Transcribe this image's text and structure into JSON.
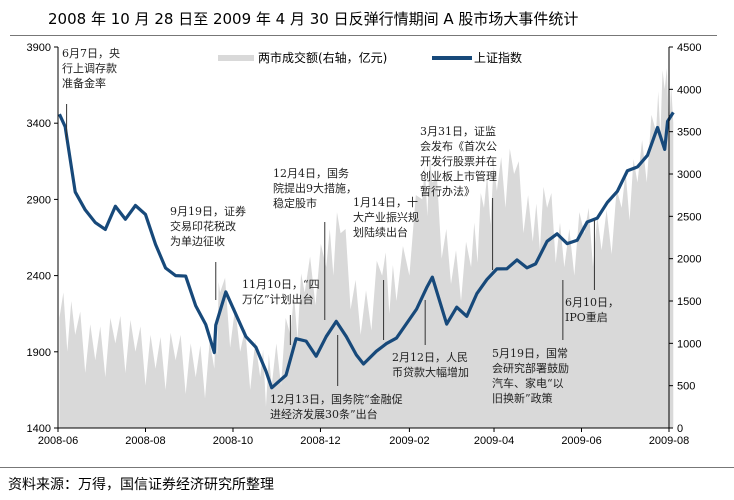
{
  "title": "2008 年 10 月 28 日至 2009 年 4 月 30 日反弹行情期间 A 股市场大事件统计",
  "source": "资料来源：万得，国信证券经济研究所整理",
  "chart_data": {
    "type": "line+area",
    "title": "2008 年 10 月 28 日至 2009 年 4 月 30 日反弹行情期间 A 股市场大事件统计",
    "xlim": [
      "2008-06-01",
      "2009-08-05"
    ],
    "x_ticks": [
      "2008-06",
      "2008-08",
      "2008-10",
      "2008-12",
      "2009-02",
      "2009-04",
      "2009-06",
      "2009-08"
    ],
    "y_left": {
      "range": [
        1400,
        3900
      ],
      "ticks": [
        1400,
        1900,
        2400,
        2900,
        3400,
        3900
      ]
    },
    "y_right": {
      "range": [
        0,
        4500
      ],
      "ticks": [
        0,
        500,
        1000,
        1500,
        2000,
        2500,
        3000,
        3500,
        4000,
        4500
      ]
    },
    "legend_position": "top",
    "grid": false,
    "colors": {
      "index": "#17497A",
      "volume": "#D9D9D9"
    },
    "series": [
      {
        "name": "上证指数",
        "axis": "left",
        "type": "line",
        "points": [
          [
            "2008-06-02",
            3459
          ],
          [
            "2008-06-06",
            3377
          ],
          [
            "2008-06-13",
            2949
          ],
          [
            "2008-06-20",
            2831
          ],
          [
            "2008-06-27",
            2748
          ],
          [
            "2008-07-04",
            2703
          ],
          [
            "2008-07-11",
            2855
          ],
          [
            "2008-07-18",
            2770
          ],
          [
            "2008-07-25",
            2860
          ],
          [
            "2008-08-01",
            2801
          ],
          [
            "2008-08-08",
            2605
          ],
          [
            "2008-08-15",
            2450
          ],
          [
            "2008-08-22",
            2400
          ],
          [
            "2008-08-29",
            2397
          ],
          [
            "2008-09-05",
            2202
          ],
          [
            "2008-09-12",
            2079
          ],
          [
            "2008-09-18",
            1895
          ],
          [
            "2008-09-19",
            2075
          ],
          [
            "2008-09-26",
            2293
          ],
          [
            "2008-10-10",
            2000
          ],
          [
            "2008-10-17",
            1930
          ],
          [
            "2008-10-24",
            1773
          ],
          [
            "2008-10-28",
            1664
          ],
          [
            "2008-11-07",
            1747
          ],
          [
            "2008-11-14",
            1986
          ],
          [
            "2008-11-21",
            1970
          ],
          [
            "2008-11-28",
            1871
          ],
          [
            "2008-12-05",
            2000
          ],
          [
            "2008-12-12",
            2100
          ],
          [
            "2008-12-19",
            2000
          ],
          [
            "2008-12-26",
            1880
          ],
          [
            "2008-12-31",
            1820
          ],
          [
            "2009-01-09",
            1904
          ],
          [
            "2009-01-16",
            1954
          ],
          [
            "2009-01-23",
            1990
          ],
          [
            "2009-02-06",
            2180
          ],
          [
            "2009-02-13",
            2320
          ],
          [
            "2009-02-17",
            2390
          ],
          [
            "2009-02-27",
            2082
          ],
          [
            "2009-03-06",
            2193
          ],
          [
            "2009-03-13",
            2133
          ],
          [
            "2009-03-20",
            2281
          ],
          [
            "2009-03-27",
            2374
          ],
          [
            "2009-04-03",
            2444
          ],
          [
            "2009-04-10",
            2445
          ],
          [
            "2009-04-17",
            2503
          ],
          [
            "2009-04-24",
            2451
          ],
          [
            "2009-04-30",
            2477
          ],
          [
            "2009-05-08",
            2625
          ],
          [
            "2009-05-15",
            2674
          ],
          [
            "2009-05-22",
            2610
          ],
          [
            "2009-05-29",
            2632
          ],
          [
            "2009-06-05",
            2752
          ],
          [
            "2009-06-12",
            2777
          ],
          [
            "2009-06-19",
            2880
          ],
          [
            "2009-06-26",
            2953
          ],
          [
            "2009-07-03",
            3088
          ],
          [
            "2009-07-10",
            3113
          ],
          [
            "2009-07-17",
            3189
          ],
          [
            "2009-07-24",
            3372
          ],
          [
            "2009-07-29",
            3228
          ],
          [
            "2009-07-31",
            3412
          ],
          [
            "2009-08-04",
            3471
          ]
        ]
      },
      {
        "name": "两市成交额(右轴，亿元)",
        "axis": "right",
        "type": "area",
        "points": [
          [
            "2008-06-02",
            1300
          ],
          [
            "2008-06-13",
            1100
          ],
          [
            "2008-06-27",
            800
          ],
          [
            "2008-07-11",
            1000
          ],
          [
            "2008-07-25",
            900
          ],
          [
            "2008-08-08",
            700
          ],
          [
            "2008-08-22",
            800
          ],
          [
            "2008-09-05",
            600
          ],
          [
            "2008-09-18",
            700
          ],
          [
            "2008-09-22",
            1600
          ],
          [
            "2008-10-06",
            900
          ],
          [
            "2008-10-20",
            600
          ],
          [
            "2008-10-28",
            500
          ],
          [
            "2008-11-10",
            1100
          ],
          [
            "2008-11-20",
            1600
          ],
          [
            "2008-12-05",
            1900
          ],
          [
            "2008-12-15",
            2300
          ],
          [
            "2008-12-29",
            1100
          ],
          [
            "2009-01-13",
            1800
          ],
          [
            "2009-01-23",
            1500
          ],
          [
            "2009-02-10",
            2700
          ],
          [
            "2009-02-17",
            2900
          ],
          [
            "2009-03-02",
            1700
          ],
          [
            "2009-03-16",
            1900
          ],
          [
            "2009-03-25",
            2600
          ],
          [
            "2009-04-03",
            2800
          ],
          [
            "2009-04-15",
            3000
          ],
          [
            "2009-04-28",
            2200
          ],
          [
            "2009-05-08",
            2600
          ],
          [
            "2009-05-20",
            1900
          ],
          [
            "2009-06-03",
            2300
          ],
          [
            "2009-06-15",
            2100
          ],
          [
            "2009-06-29",
            2600
          ],
          [
            "2009-07-10",
            2900
          ],
          [
            "2009-07-23",
            3500
          ],
          [
            "2009-07-29",
            4000
          ],
          [
            "2009-08-04",
            3600
          ]
        ]
      }
    ],
    "annotations": [
      {
        "date": "2008-06-07",
        "text": [
          "6月7日，央",
          "行上调存款",
          "准备金率"
        ]
      },
      {
        "date": "2008-09-19",
        "text": [
          "9月19日，证券",
          "交易印花税改",
          "为单边征收"
        ]
      },
      {
        "date": "2008-12-04",
        "text": [
          "12月4日，国务",
          "院提出9大措施，",
          "稳定股市"
        ]
      },
      {
        "date": "2009-01-14",
        "text": [
          "1月14日，十",
          "大产业振兴规",
          "划陆续出台"
        ]
      },
      {
        "date": "2008-11-10",
        "text": [
          "11月10日，“四",
          "万亿”计划出台"
        ]
      },
      {
        "date": "2008-12-13",
        "text": [
          "12月13日，国务院“金融促",
          "进经济发展30条”出台"
        ]
      },
      {
        "date": "2009-02-12",
        "text": [
          "2月12日，人民",
          "币贷款大幅增加"
        ]
      },
      {
        "date": "2009-03-31",
        "text": [
          "3月31日，证监",
          "会发布《首次公",
          "开发行股票并在",
          "创业板上市管理",
          "暂行办法》"
        ]
      },
      {
        "date": "2009-05-19",
        "text": [
          "5月19日，国常",
          "会研究部署鼓励",
          "汽车、家电“以",
          "旧换新”政策"
        ]
      },
      {
        "date": "2009-06-10",
        "text": [
          "6月10日，",
          "IPO重启"
        ]
      }
    ]
  }
}
